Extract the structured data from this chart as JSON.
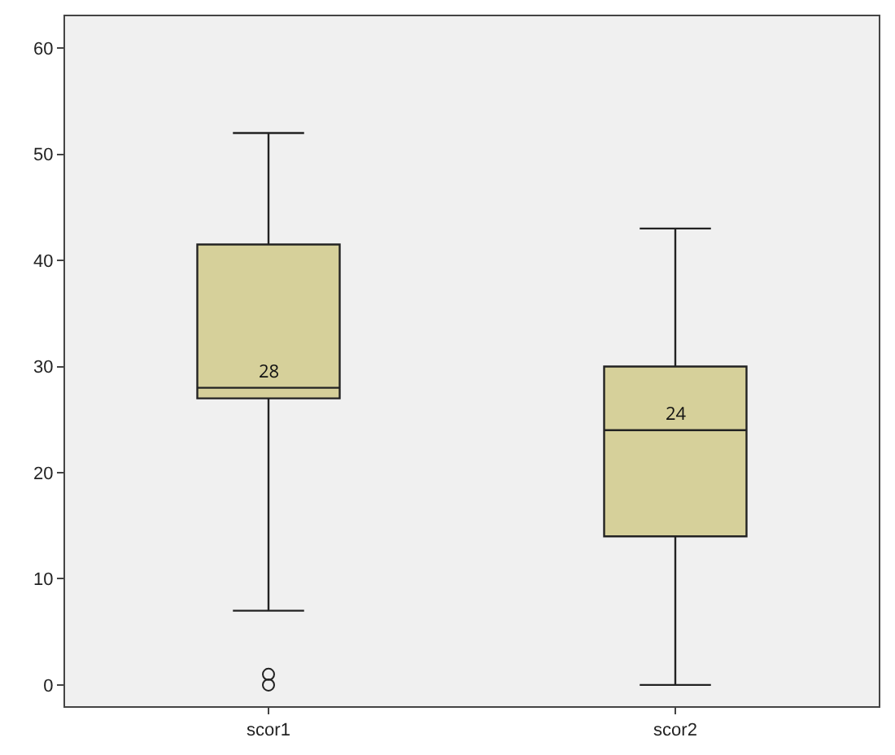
{
  "chart_data": {
    "type": "box",
    "categories": [
      "scor1",
      "scor2"
    ],
    "boxes": [
      {
        "low": 7,
        "q1": 27,
        "median": 28,
        "q3": 41.5,
        "high": 52,
        "outliers": [
          0,
          1
        ]
      },
      {
        "low": 0,
        "q1": 14,
        "median": 24,
        "q3": 30,
        "high": 43
      }
    ],
    "color": "#d6d09a",
    "annotations": [
      {
        "text": "28",
        "x": "scor1",
        "y": 28
      },
      {
        "text": "24",
        "x": "scor2",
        "y": 24
      }
    ],
    "ylim": [
      -2,
      63
    ],
    "yticks": [
      0,
      10,
      20,
      30,
      40,
      50,
      60
    ],
    "grid": false
  }
}
